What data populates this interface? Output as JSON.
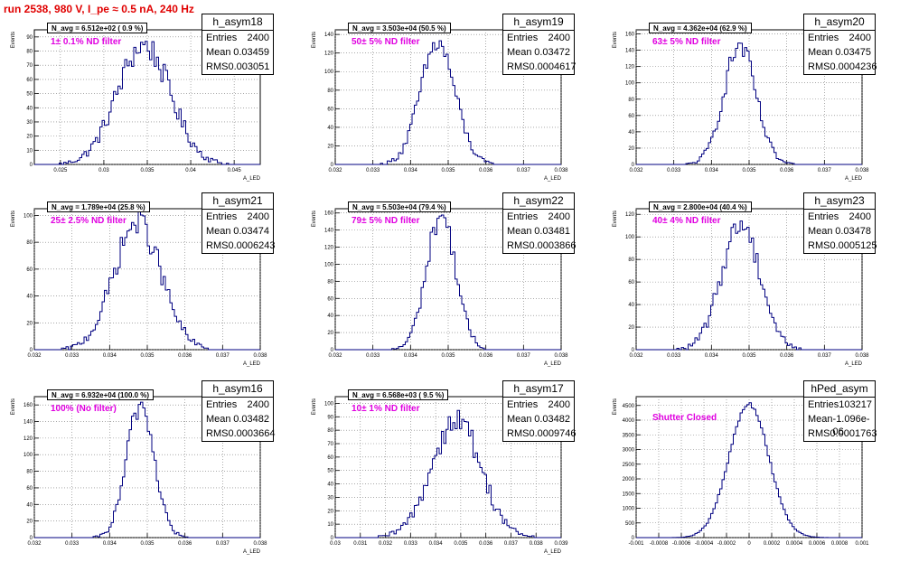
{
  "page_title": "run 2538,   980 V, I_pe ≈ 0.5 nA, 240 Hz",
  "colors": {
    "hist": "#000080",
    "title": "#e00000",
    "label": "#e000e0",
    "grid": "#777777"
  },
  "y_axis_label": "Events",
  "chart_data": [
    {
      "type": "histogram",
      "hist_name": "h_asym18",
      "entries": "2400",
      "mean": "0.03459",
      "rms": "0.003051",
      "n_avg": "N_avg = 6.512e+02 ( 0.9 %)",
      "label": "1± 0.1% ND filter",
      "xlabel": "A_LED",
      "xlim": [
        0.022,
        0.048
      ],
      "ylim": [
        0,
        95
      ],
      "mu": 0.03459,
      "sigma": 0.003051,
      "peak": 84,
      "xticks": [
        0.025,
        0.03,
        0.035,
        0.04,
        0.045
      ],
      "xtick_labels": [
        "0.025",
        "0.03",
        "0.035",
        "0.04",
        "0.045"
      ],
      "yticks": [
        0,
        10,
        20,
        30,
        40,
        50,
        60,
        70,
        80,
        90
      ],
      "ytick_labels": [
        "0",
        "10",
        "20",
        "30",
        "40",
        "50",
        "60",
        "70",
        "80",
        "90"
      ]
    },
    {
      "type": "histogram",
      "hist_name": "h_asym19",
      "entries": "2400",
      "mean": "0.03472",
      "rms": "0.0004617",
      "n_avg": "N_avg = 3.503e+04 (50.5 %)",
      "label": "50± 5% ND filter",
      "xlabel": "A_LED",
      "xlim": [
        0.032,
        0.038
      ],
      "ylim": [
        0,
        145
      ],
      "mu": 0.03472,
      "sigma": 0.0004617,
      "peak": 130,
      "xticks": [
        0.032,
        0.033,
        0.034,
        0.035,
        0.036,
        0.037,
        0.038
      ],
      "xtick_labels": [
        "0.032",
        "0.033",
        "0.034",
        "0.035",
        "0.036",
        "0.037",
        "0.038"
      ],
      "yticks": [
        0,
        20,
        40,
        60,
        80,
        100,
        120,
        140
      ],
      "ytick_labels": [
        "0",
        "20",
        "40",
        "60",
        "80",
        "100",
        "120",
        "140"
      ]
    },
    {
      "type": "histogram",
      "hist_name": "h_asym20",
      "entries": "2400",
      "mean": "0.03475",
      "rms": "0.0004236",
      "n_avg": "N_avg = 4.362e+04 (62.9 %)",
      "label": "63± 5% ND filter",
      "xlabel": "A_LED",
      "xlim": [
        0.032,
        0.038
      ],
      "ylim": [
        0,
        165
      ],
      "mu": 0.03475,
      "sigma": 0.0004236,
      "peak": 145,
      "xticks": [
        0.032,
        0.033,
        0.034,
        0.035,
        0.036,
        0.037,
        0.038
      ],
      "xtick_labels": [
        "0.032",
        "0.033",
        "0.034",
        "0.035",
        "0.036",
        "0.037",
        "0.038"
      ],
      "yticks": [
        0,
        20,
        40,
        60,
        80,
        100,
        120,
        140,
        160
      ],
      "ytick_labels": [
        "0",
        "20",
        "40",
        "60",
        "80",
        "100",
        "120",
        "140",
        "160"
      ]
    },
    {
      "type": "histogram",
      "hist_name": "h_asym21",
      "entries": "2400",
      "mean": "0.03474",
      "rms": "0.0006243",
      "n_avg": "N_avg = 1.789e+04 (25.8 %)",
      "label": "25± 2.5% ND filter",
      "xlabel": "A_LED",
      "xlim": [
        0.032,
        0.038
      ],
      "ylim": [
        0,
        105
      ],
      "mu": 0.03474,
      "sigma": 0.0006243,
      "peak": 95,
      "xticks": [
        0.032,
        0.033,
        0.034,
        0.035,
        0.036,
        0.037,
        0.038
      ],
      "xtick_labels": [
        "0.032",
        "0.033",
        "0.034",
        "0.035",
        "0.036",
        "0.037",
        "0.038"
      ],
      "yticks": [
        0,
        20,
        40,
        60,
        80,
        100
      ],
      "ytick_labels": [
        "0",
        "20",
        "40",
        "60",
        "80",
        "100"
      ]
    },
    {
      "type": "histogram",
      "hist_name": "h_asym22",
      "entries": "2400",
      "mean": "0.03481",
      "rms": "0.0003866",
      "n_avg": "N_avg = 5.503e+04 (79.4 %)",
      "label": "79± 5% ND filter",
      "xlabel": "A_LED",
      "xlim": [
        0.032,
        0.038
      ],
      "ylim": [
        0,
        165
      ],
      "mu": 0.03481,
      "sigma": 0.0003866,
      "peak": 158,
      "xticks": [
        0.032,
        0.033,
        0.034,
        0.035,
        0.036,
        0.037,
        0.038
      ],
      "xtick_labels": [
        "0.032",
        "0.033",
        "0.034",
        "0.035",
        "0.036",
        "0.037",
        "0.038"
      ],
      "yticks": [
        0,
        20,
        40,
        60,
        80,
        100,
        120,
        140,
        160
      ],
      "ytick_labels": [
        "0",
        "20",
        "40",
        "60",
        "80",
        "100",
        "120",
        "140",
        "160"
      ]
    },
    {
      "type": "histogram",
      "hist_name": "h_asym23",
      "entries": "2400",
      "mean": "0.03478",
      "rms": "0.0005125",
      "n_avg": "N_avg = 2.800e+04 (40.4 %)",
      "label": "40± 4% ND filter",
      "xlabel": "A_LED",
      "xlim": [
        0.032,
        0.038
      ],
      "ylim": [
        0,
        125
      ],
      "mu": 0.03478,
      "sigma": 0.0005125,
      "peak": 112,
      "xticks": [
        0.032,
        0.033,
        0.034,
        0.035,
        0.036,
        0.037,
        0.038
      ],
      "xtick_labels": [
        "0.032",
        "0.033",
        "0.034",
        "0.035",
        "0.036",
        "0.037",
        "0.038"
      ],
      "yticks": [
        0,
        20,
        40,
        60,
        80,
        100,
        120
      ],
      "ytick_labels": [
        "0",
        "20",
        "40",
        "60",
        "80",
        "100",
        "120"
      ]
    },
    {
      "type": "histogram",
      "hist_name": "h_asym16",
      "entries": "2400",
      "mean": "0.03482",
      "rms": "0.0003664",
      "n_avg": "N_avg = 6.932e+04 (100.0 %)",
      "label": "100% (No filter)",
      "xlabel": "A_LED",
      "xlim": [
        0.032,
        0.038
      ],
      "ylim": [
        0,
        170
      ],
      "mu": 0.03482,
      "sigma": 0.0003664,
      "peak": 160,
      "xticks": [
        0.032,
        0.033,
        0.034,
        0.035,
        0.036,
        0.037,
        0.038
      ],
      "xtick_labels": [
        "0.032",
        "0.033",
        "0.034",
        "0.035",
        "0.036",
        "0.037",
        "0.038"
      ],
      "yticks": [
        0,
        20,
        40,
        60,
        80,
        100,
        120,
        140,
        160
      ],
      "ytick_labels": [
        "0",
        "20",
        "40",
        "60",
        "80",
        "100",
        "120",
        "140",
        "160"
      ]
    },
    {
      "type": "histogram",
      "hist_name": "h_asym17",
      "entries": "2400",
      "mean": "0.03482",
      "rms": "0.0009746",
      "n_avg": "N_avg = 6.568e+03 ( 9.5 %)",
      "label": "10± 1% ND filter",
      "xlabel": "A_LED",
      "xlim": [
        0.03,
        0.039
      ],
      "ylim": [
        0,
        105
      ],
      "mu": 0.03482,
      "sigma": 0.0009746,
      "peak": 88,
      "xticks": [
        0.03,
        0.031,
        0.032,
        0.033,
        0.034,
        0.035,
        0.036,
        0.037,
        0.038,
        0.039
      ],
      "xtick_labels": [
        "0.03",
        "0.031",
        "0.032",
        "0.033",
        "0.034",
        "0.035",
        "0.036",
        "0.037",
        "0.038",
        "0.039"
      ],
      "yticks": [
        0,
        10,
        20,
        30,
        40,
        50,
        60,
        70,
        80,
        90,
        100
      ],
      "ytick_labels": [
        "0",
        "10",
        "20",
        "30",
        "40",
        "50",
        "60",
        "70",
        "80",
        "90",
        "100"
      ]
    },
    {
      "type": "histogram",
      "hist_name": "hPed_asym",
      "entries": "103217",
      "mean": "-1.096e-06",
      "rms": "0.0001763",
      "n_avg": "",
      "label": "Shutter Closed",
      "xlabel": "",
      "xlim": [
        -0.001,
        0.001
      ],
      "ylim": [
        0,
        4800
      ],
      "mu": -1.096e-06,
      "sigma": 0.0001763,
      "peak": 4550,
      "xticks": [
        -0.001,
        -0.0008,
        -0.0006,
        -0.0004,
        -0.0002,
        0,
        0.0002,
        0.0004,
        0.0006,
        0.0008,
        0.001
      ],
      "xtick_labels": [
        "-0.001",
        "-0.0008",
        "-0.0006",
        "-0.0004",
        "-0.0002",
        "0",
        "0.0002",
        "0.0004",
        "0.0006",
        "0.0008",
        "0.001"
      ],
      "yticks": [
        0,
        500,
        1000,
        1500,
        2000,
        2500,
        3000,
        3500,
        4000,
        4500
      ],
      "ytick_labels": [
        "0",
        "500",
        "1000",
        "1500",
        "2000",
        "2500",
        "3000",
        "3500",
        "4000",
        "4500"
      ]
    }
  ]
}
